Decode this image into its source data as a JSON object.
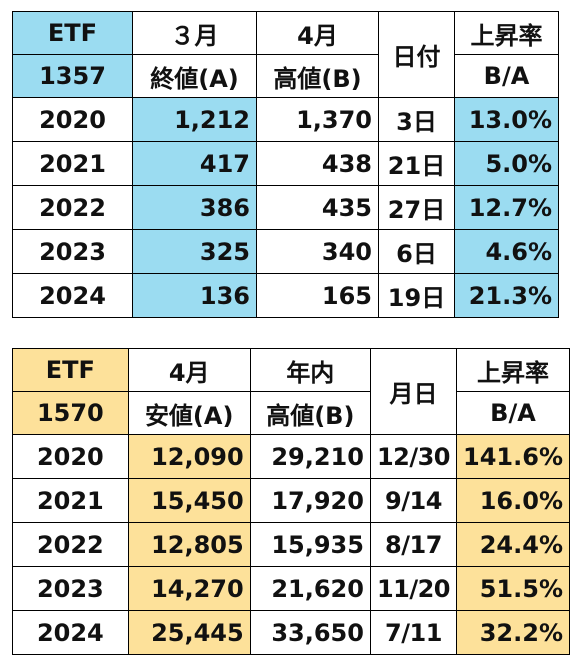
{
  "table1": {
    "etf_label": "ETF",
    "etf_code": "1357",
    "col_a_line1": "３月",
    "col_a_line2": "終値(A)",
    "col_b_line1": "4月",
    "col_b_line2": "高値(B)",
    "col_date": "日付",
    "col_rate_line1": "上昇率",
    "col_rate_line2": "B/A",
    "rows": [
      {
        "year": "2020",
        "a": "1,212",
        "b": "1,370",
        "date": "3日",
        "rate": "13.0%"
      },
      {
        "year": "2021",
        "a": "417",
        "b": "438",
        "date": "21日",
        "rate": "5.0%"
      },
      {
        "year": "2022",
        "a": "386",
        "b": "435",
        "date": "27日",
        "rate": "12.7%"
      },
      {
        "year": "2023",
        "a": "325",
        "b": "340",
        "date": "6日",
        "rate": "4.6%"
      },
      {
        "year": "2024",
        "a": "136",
        "b": "165",
        "date": "19日",
        "rate": "21.3%"
      }
    ],
    "highlight_color": "#9bdcf1"
  },
  "table2": {
    "etf_label": "ETF",
    "etf_code": "1570",
    "col_a_line1": "4月",
    "col_a_line2": "安値(A)",
    "col_b_line1": "年内",
    "col_b_line2": "高値(B)",
    "col_date": "月日",
    "col_rate_line1": "上昇率",
    "col_rate_line2": "B/A",
    "rows": [
      {
        "year": "2020",
        "a": "12,090",
        "b": "29,210",
        "date": "12/30",
        "rate": "141.6%"
      },
      {
        "year": "2021",
        "a": "15,450",
        "b": "17,920",
        "date": "9/14",
        "rate": "16.0%"
      },
      {
        "year": "2022",
        "a": "12,805",
        "b": "15,935",
        "date": "8/17",
        "rate": "24.4%"
      },
      {
        "year": "2023",
        "a": "14,270",
        "b": "21,620",
        "date": "11/20",
        "rate": "51.5%"
      },
      {
        "year": "2024",
        "a": "25,445",
        "b": "33,650",
        "date": "7/11",
        "rate": "32.2%"
      }
    ],
    "highlight_color": "#fde19a"
  }
}
